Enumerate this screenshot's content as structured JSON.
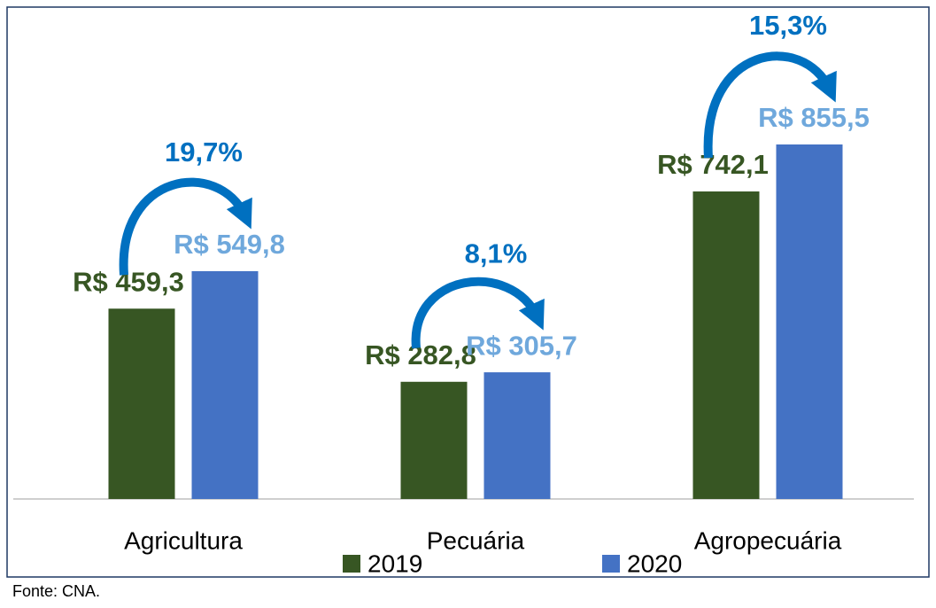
{
  "chart_data": {
    "type": "bar",
    "categories": [
      "Agricultura",
      "Pecuária",
      "Agropecuária"
    ],
    "series": [
      {
        "name": "2019",
        "color": "#375623",
        "label_color": "#375623",
        "values": [
          459.3,
          282.8,
          742.1
        ],
        "value_labels": [
          "R$ 459,3",
          "R$ 282,8",
          "R$ 742,1"
        ]
      },
      {
        "name": "2020",
        "color": "#4472c4",
        "label_color": "#6fa8dc",
        "values": [
          549.8,
          305.7,
          855.5
        ],
        "value_labels": [
          "R$ 549,8",
          "R$ 305,7",
          "R$ 855,5"
        ]
      }
    ],
    "growth": [
      19.7,
      8.1,
      15.3
    ],
    "growth_labels": [
      "19,7%",
      "8,1%",
      "15,3%"
    ],
    "growth_color": "#0070c0",
    "source": "Fonte: CNA."
  }
}
